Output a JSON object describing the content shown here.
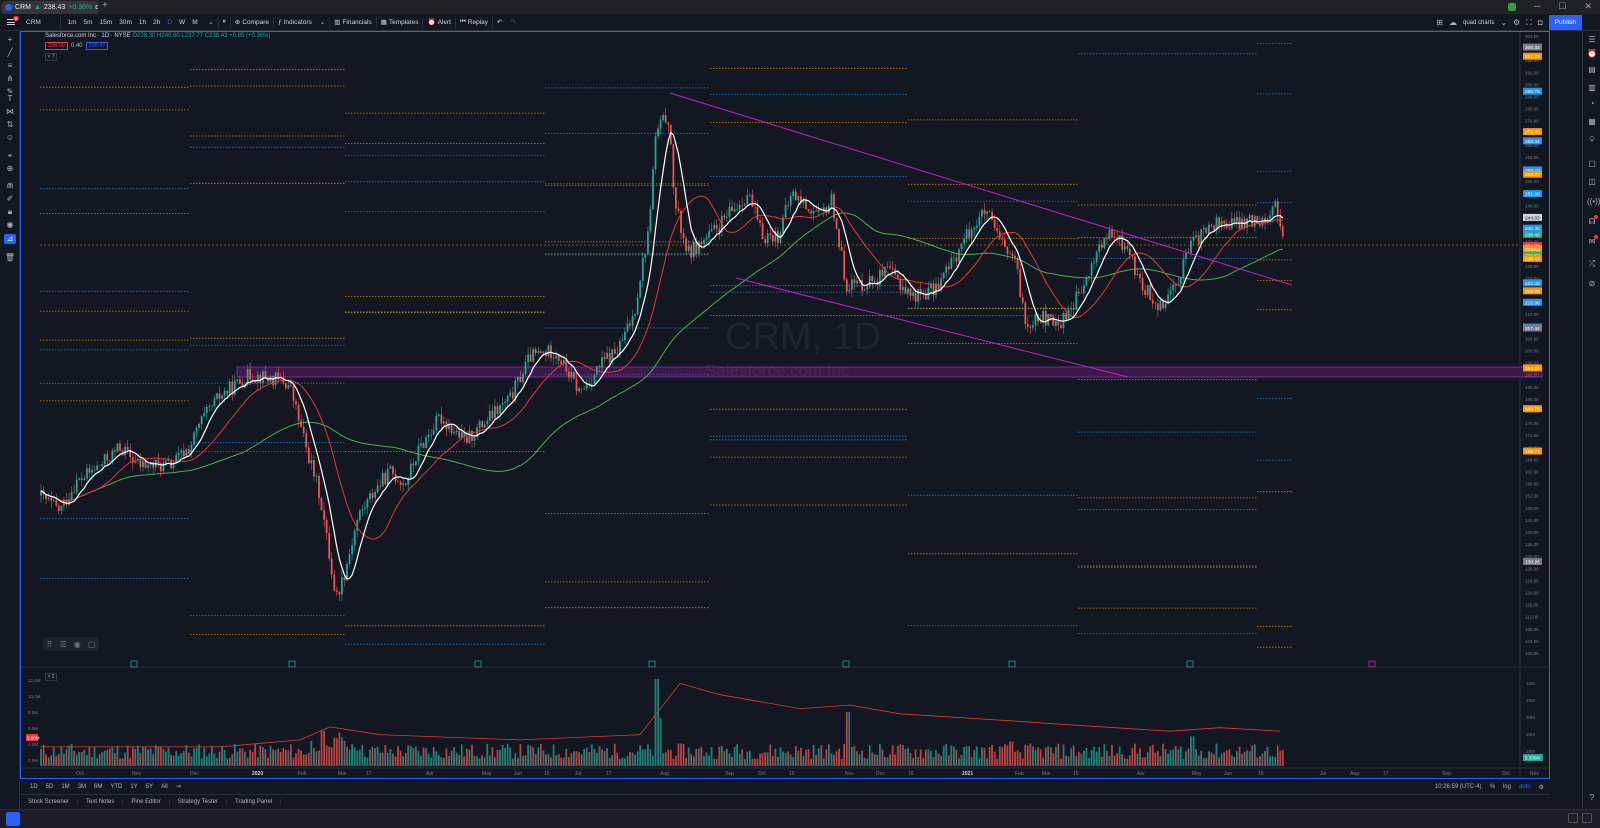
{
  "browser": {
    "tab_title": "CRM",
    "tab_price": "238.43",
    "tab_change": "+0.36%",
    "tab_suffix": "quot",
    "newtab": "+",
    "ext_badge": "6"
  },
  "toolbar": {
    "menu_badge": "8",
    "symbol": "CRM",
    "intervals": [
      "1m",
      "5m",
      "15m",
      "30m",
      "1h",
      "2h",
      "D",
      "W",
      "M"
    ],
    "active_interval": "D",
    "compare": "Compare",
    "indicators": "Indicators",
    "financials": "Financials",
    "templates": "Templates",
    "alert": "Alert",
    "replay": "Replay",
    "layout_name": "quad charts",
    "publish": "Publish"
  },
  "legend": {
    "title": "Salesforce.com Inc · 1D · NYSE",
    "ohlc": "O238.30 H240.60 L237.77 C238.43 +0.85 (+0.36%)",
    "bid": "238.09",
    "spread": "0.40",
    "ask": "238.47",
    "collapse": "˅ 7"
  },
  "watermark": {
    "symbol": "CRM, 1D",
    "name": "Salesforce.com Inc"
  },
  "chart_data": {
    "type": "candlestick",
    "x_ticks": [
      "Oct",
      "Nov",
      "Dec",
      "2020",
      "Feb",
      "Mar",
      "17",
      "Apr",
      "May",
      "Jun",
      "16",
      "Jul",
      "17",
      "Aug",
      "Sep",
      "Oct",
      "16",
      "Nov",
      "Dec",
      "16",
      "2021",
      "Feb",
      "Mar",
      "16",
      "Apr",
      "May",
      "Jun",
      "16",
      "Jul",
      "Aug",
      "17",
      "Sep",
      "Oct",
      "Nov"
    ],
    "y_ticks": [
      "304.00",
      "300.00",
      "296.00",
      "292.00",
      "288.00",
      "284.00",
      "280.00",
      "276.00",
      "272.00",
      "268.00",
      "264.00",
      "260.00",
      "256.00",
      "252.00",
      "248.00",
      "244.00",
      "240.00",
      "236.00",
      "232.00",
      "228.00",
      "224.00",
      "220.00",
      "216.00",
      "212.00",
      "208.00",
      "204.00",
      "200.00",
      "196.00",
      "192.00",
      "188.00",
      "184.00",
      "180.00",
      "176.00",
      "172.00",
      "168.00",
      "164.00",
      "160.00",
      "156.00",
      "152.00",
      "148.00",
      "144.00",
      "140.00",
      "136.00",
      "132.00",
      "128.00",
      "124.00",
      "120.00",
      "116.00",
      "112.00",
      "108.00",
      "104.00",
      "100.00"
    ],
    "ylim": [
      98,
      305
    ],
    "price_labels": [
      {
        "value": "300.33",
        "color": "#787b86"
      },
      {
        "value": "297.33",
        "color": "#ff9800"
      },
      {
        "value": "285.75",
        "color": "#2196f3"
      },
      {
        "value": "272.40",
        "color": "#ff9800"
      },
      {
        "value": "269.34",
        "color": "#2196f3"
      },
      {
        "value": "259.73",
        "color": "#2196f3"
      },
      {
        "value": "258.31",
        "color": "#ff9800"
      },
      {
        "value": "251.90",
        "color": "#2196f3"
      },
      {
        "value": "244.03",
        "color": "#d1d4dc"
      },
      {
        "value": "240.46",
        "color": "#2196f3"
      },
      {
        "value": "238.43",
        "color": "#26a69a"
      },
      {
        "value": "234.72",
        "color": "#f23645"
      },
      {
        "value": "233.60",
        "color": "#ff9800"
      },
      {
        "value": "231.59",
        "color": "#4caf50"
      },
      {
        "value": "230.47",
        "color": "#ff9800"
      },
      {
        "value": "222.39",
        "color": "#2196f3"
      },
      {
        "value": "219.76",
        "color": "#ff9800"
      },
      {
        "value": "215.96",
        "color": "#2196f3"
      },
      {
        "value": "207.75",
        "color": "#2196f3"
      },
      {
        "value": "207.44",
        "color": "#787b86"
      },
      {
        "value": "194.24",
        "color": "#ff9800"
      },
      {
        "value": "180.78",
        "color": "#ff9800"
      },
      {
        "value": "166.77",
        "color": "#ff9800"
      },
      {
        "value": "130.26",
        "color": "#787b86"
      }
    ],
    "series": [
      {
        "name": "Price",
        "color_up": "#26a69a",
        "color_down": "#ef5350"
      },
      {
        "name": "MA short",
        "color": "#ffffff"
      },
      {
        "name": "MA mid",
        "color": "#e53935"
      },
      {
        "name": "MA long",
        "color": "#4caf50"
      }
    ],
    "volume_axis": [
      "12.0M",
      "10.0M",
      "8.0M",
      "6.0M",
      "4.0M",
      "2.0M"
    ],
    "volume_axis_right": [
      "10M",
      "40M",
      "30M",
      "20M",
      "10M"
    ],
    "volume_label": "5.80M",
    "volume_value": "5.385M"
  },
  "ranges": {
    "items": [
      "1D",
      "5D",
      "1M",
      "3M",
      "6M",
      "YTD",
      "1Y",
      "5Y",
      "All"
    ],
    "time": "10:26:59 (UTC-4)",
    "pct": "%",
    "log": "log",
    "auto": "auto"
  },
  "bottom": {
    "items": [
      "Stock Screener",
      "Text Notes",
      "Pine Editor",
      "Strategy Tester",
      "Trading Panel"
    ]
  }
}
